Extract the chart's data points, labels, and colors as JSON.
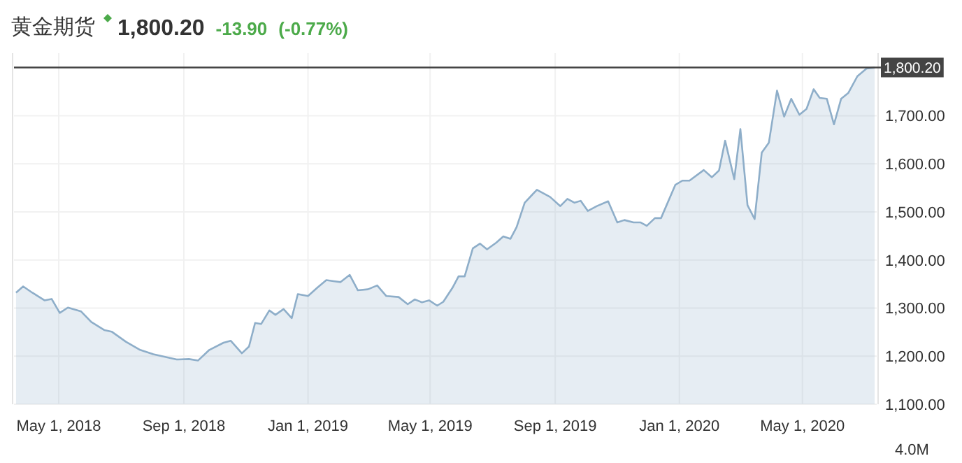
{
  "chart_data": {
    "type": "area",
    "title": "黄金期货",
    "annotations": [
      "1,800.20",
      "-13.90",
      "(-0.77%)",
      "4.0M"
    ],
    "x": [
      "2018-03-20",
      "2018-03-27",
      "2018-04-05",
      "2018-04-17",
      "2018-04-24",
      "2018-05-02",
      "2018-05-10",
      "2018-05-23",
      "2018-06-02",
      "2018-06-15",
      "2018-06-22",
      "2018-07-06",
      "2018-07-20",
      "2018-08-02",
      "2018-08-25",
      "2018-09-06",
      "2018-09-15",
      "2018-09-26",
      "2018-10-10",
      "2018-10-17",
      "2018-10-28",
      "2018-11-04",
      "2018-11-10",
      "2018-11-16",
      "2018-11-24",
      "2018-11-30",
      "2018-12-08",
      "2018-12-16",
      "2018-12-22",
      "2019-01-01",
      "2019-01-10",
      "2019-01-19",
      "2019-01-26",
      "2019-02-02",
      "2019-02-11",
      "2019-02-19",
      "2019-03-01",
      "2019-03-10",
      "2019-03-19",
      "2019-03-31",
      "2019-04-09",
      "2019-04-16",
      "2019-04-23",
      "2019-04-30",
      "2019-05-08",
      "2019-05-14",
      "2019-05-23",
      "2019-05-29",
      "2019-06-04",
      "2019-06-12",
      "2019-06-19",
      "2019-06-26",
      "2019-07-05",
      "2019-07-12",
      "2019-07-19",
      "2019-07-25",
      "2019-08-02",
      "2019-08-14",
      "2019-08-27",
      "2019-09-06",
      "2019-09-13",
      "2019-09-20",
      "2019-09-26",
      "2019-10-03",
      "2019-10-12",
      "2019-10-23",
      "2019-11-01",
      "2019-11-08",
      "2019-11-17",
      "2019-11-24",
      "2019-11-30",
      "2019-12-08",
      "2019-12-14",
      "2019-12-28",
      "2020-01-04",
      "2020-01-11",
      "2020-01-25",
      "2020-02-02",
      "2020-02-09",
      "2020-02-15",
      "2020-02-24",
      "2020-03-01",
      "2020-03-08",
      "2020-03-15",
      "2020-03-22",
      "2020-03-29",
      "2020-04-06",
      "2020-04-13",
      "2020-04-20",
      "2020-04-28",
      "2020-05-05",
      "2020-05-12",
      "2020-05-18",
      "2020-05-25",
      "2020-06-01",
      "2020-06-08",
      "2020-06-15",
      "2020-06-24",
      "2020-07-03",
      "2020-07-11"
    ],
    "series": [
      {
        "color": "#8eaec9",
        "values": [
          1332,
          1345,
          1332,
          1316,
          1319,
          1290,
          1301,
          1293,
          1271,
          1254,
          1251,
          1230,
          1213,
          1204,
          1193,
          1194,
          1191,
          1213,
          1228,
          1232,
          1206,
          1220,
          1269,
          1267,
          1295,
          1286,
          1298,
          1279,
          1329,
          1325,
          1342,
          1358,
          1356,
          1354,
          1369,
          1337,
          1339,
          1347,
          1325,
          1323,
          1308,
          1318,
          1312,
          1316,
          1305,
          1313,
          1342,
          1366,
          1366,
          1424,
          1434,
          1422,
          1436,
          1449,
          1444,
          1468,
          1519,
          1546,
          1531,
          1512,
          1527,
          1519,
          1523,
          1502,
          1512,
          1522,
          1478,
          1483,
          1478,
          1478,
          1471,
          1487,
          1487,
          1556,
          1565,
          1565,
          1587,
          1572,
          1586,
          1648,
          1568,
          1672,
          1514,
          1485,
          1623,
          1644,
          1752,
          1698,
          1735,
          1702,
          1714,
          1755,
          1737,
          1735,
          1682,
          1735,
          1747,
          1782,
          1798,
          1800
        ]
      }
    ],
    "xlim": [
      "2018-03-18",
      "2020-07-13"
    ],
    "xticks": [
      {
        "value": "2018-05-01",
        "label": "May 1, 2018"
      },
      {
        "value": "2018-09-01",
        "label": "Sep 1, 2018"
      },
      {
        "value": "2019-01-01",
        "label": "Jan 1, 2019"
      },
      {
        "value": "2019-05-01",
        "label": "May 1, 2019"
      },
      {
        "value": "2019-09-01",
        "label": "Sep 1, 2019"
      },
      {
        "value": "2020-01-01",
        "label": "Jan 1, 2020"
      },
      {
        "value": "2020-05-01",
        "label": "May 1, 2020"
      }
    ],
    "ylim": [
      1100,
      1830
    ],
    "yticks": [
      {
        "value": 1100,
        "label": "1,100.00"
      },
      {
        "value": 1200,
        "label": "1,200.00"
      },
      {
        "value": 1300,
        "label": "1,300.00"
      },
      {
        "value": 1400,
        "label": "1,400.00"
      },
      {
        "value": 1500,
        "label": "1,500.00"
      },
      {
        "value": 1600,
        "label": "1,600.00"
      },
      {
        "value": 1700,
        "label": "1,700.00"
      }
    ],
    "ref_lines": [
      {
        "axis": "y",
        "value": 1800.2,
        "label": "1,800.20",
        "color": "#444444"
      }
    ],
    "grid": true
  }
}
